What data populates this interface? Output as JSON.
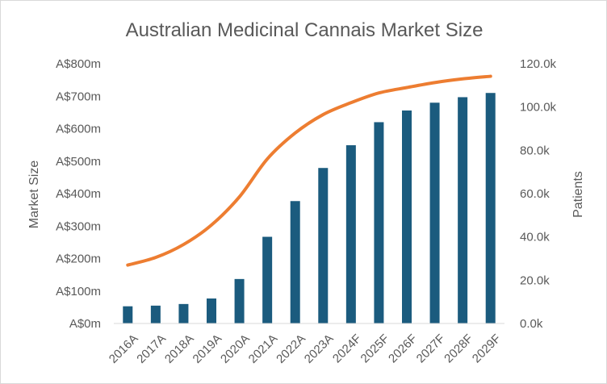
{
  "chart_data": {
    "type": "bar+line",
    "title": "Australian Medicinal Cannais Market Size",
    "categories": [
      "2016A",
      "2017A",
      "2018A",
      "2019A",
      "2020A",
      "2021A",
      "2022A",
      "2023A",
      "2024F",
      "2025F",
      "2026F",
      "2027F",
      "2028F",
      "2029F"
    ],
    "series": [
      {
        "name": "Market Size",
        "type": "bar",
        "axis": "left",
        "unit": "A$m",
        "color": "#1b5b7e",
        "values": [
          53,
          55,
          60,
          77,
          137,
          267,
          377,
          479,
          549,
          620,
          656,
          680,
          697,
          710
        ]
      },
      {
        "name": "Patients",
        "type": "line",
        "axis": "right",
        "unit": "k",
        "color": "#ed7d31",
        "values": [
          27,
          30.5,
          36.5,
          45.5,
          58.5,
          76,
          88,
          96.5,
          102,
          106.5,
          109,
          111.3,
          113,
          114.2
        ]
      }
    ],
    "ylabel_left": "Market Size",
    "ylabel_right": "Patients",
    "ylim_left": [
      0,
      800
    ],
    "ylim_right": [
      0,
      120
    ],
    "left_ticks": [
      "A$0m",
      "A$100m",
      "A$200m",
      "A$300m",
      "A$400m",
      "A$500m",
      "A$600m",
      "A$700m",
      "A$800m"
    ],
    "right_ticks": [
      "0.0k",
      "20.0k",
      "40.0k",
      "60.0k",
      "80.0k",
      "100.0k",
      "120.0k"
    ],
    "grid": false,
    "legend": "none"
  }
}
